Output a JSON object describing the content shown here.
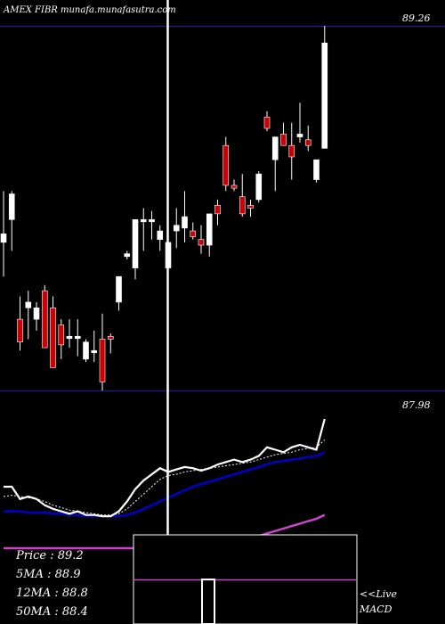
{
  "header": "AMEX  FIBR munafa.munafasutra.com",
  "colors": {
    "background": "#000000",
    "bull": "#ffffff",
    "bear": "#cc0000",
    "level_line": "#1c1c7a",
    "price_line": "#ffffff",
    "ma5": "#ffffff",
    "ma12": "#0000cc",
    "ma50": "#cc44cc",
    "cursor": "#ffffff"
  },
  "chart_data": {
    "type": "candlestick",
    "y_range": [
      87.9,
      89.33
    ],
    "levels": [
      {
        "label": "89.26",
        "value": 89.26
      },
      {
        "label": "87.98",
        "value": 87.98
      }
    ],
    "candles": [
      {
        "o": 88.5,
        "h": 88.68,
        "l": 88.38,
        "c": 88.53
      },
      {
        "o": 88.58,
        "h": 88.68,
        "l": 88.47,
        "c": 88.67
      },
      {
        "o": 88.23,
        "h": 88.31,
        "l": 88.12,
        "c": 88.15
      },
      {
        "o": 88.27,
        "h": 88.33,
        "l": 88.16,
        "c": 88.29
      },
      {
        "o": 88.23,
        "h": 88.29,
        "l": 88.19,
        "c": 88.27
      },
      {
        "o": 88.33,
        "h": 88.35,
        "l": 88.13,
        "c": 88.13
      },
      {
        "o": 88.27,
        "h": 88.31,
        "l": 88.06,
        "c": 88.06
      },
      {
        "o": 88.21,
        "h": 88.23,
        "l": 88.09,
        "c": 88.14
      },
      {
        "o": 88.17,
        "h": 88.23,
        "l": 88.13,
        "c": 88.17
      },
      {
        "o": 88.17,
        "h": 88.23,
        "l": 88.1,
        "c": 88.17
      },
      {
        "o": 88.09,
        "h": 88.16,
        "l": 88.08,
        "c": 88.15
      },
      {
        "o": 88.12,
        "h": 88.19,
        "l": 88.08,
        "c": 88.12
      },
      {
        "o": 88.16,
        "h": 88.25,
        "l": 87.98,
        "c": 88.01
      },
      {
        "o": 88.17,
        "h": 88.18,
        "l": 88.11,
        "c": 88.16
      },
      {
        "o": 88.29,
        "h": 88.38,
        "l": 88.26,
        "c": 88.38
      },
      {
        "o": 88.45,
        "h": 88.47,
        "l": 88.44,
        "c": 88.46
      },
      {
        "o": 88.41,
        "h": 88.58,
        "l": 88.37,
        "c": 88.58
      },
      {
        "o": 88.58,
        "h": 88.62,
        "l": 88.47,
        "c": 88.58
      },
      {
        "o": 88.58,
        "h": 88.61,
        "l": 88.51,
        "c": 88.58
      },
      {
        "o": 88.51,
        "h": 88.56,
        "l": 88.47,
        "c": 88.54
      },
      {
        "o": 88.41,
        "h": 88.53,
        "l": 88.39,
        "c": 88.5
      },
      {
        "o": 88.54,
        "h": 88.62,
        "l": 88.48,
        "c": 88.56
      },
      {
        "o": 88.55,
        "h": 88.68,
        "l": 88.5,
        "c": 88.59
      },
      {
        "o": 88.54,
        "h": 88.57,
        "l": 88.51,
        "c": 88.52
      },
      {
        "o": 88.51,
        "h": 88.56,
        "l": 88.46,
        "c": 88.49
      },
      {
        "o": 88.49,
        "h": 88.6,
        "l": 88.45,
        "c": 88.6
      },
      {
        "o": 88.63,
        "h": 88.65,
        "l": 88.56,
        "c": 88.6
      },
      {
        "o": 88.84,
        "h": 88.87,
        "l": 88.68,
        "c": 88.7
      },
      {
        "o": 88.7,
        "h": 88.72,
        "l": 88.68,
        "c": 88.69
      },
      {
        "o": 88.66,
        "h": 88.74,
        "l": 88.59,
        "c": 88.6
      },
      {
        "o": 88.63,
        "h": 88.65,
        "l": 88.59,
        "c": 88.62
      },
      {
        "o": 88.65,
        "h": 88.75,
        "l": 88.64,
        "c": 88.74
      },
      {
        "o": 88.94,
        "h": 88.96,
        "l": 88.89,
        "c": 88.9
      },
      {
        "o": 88.79,
        "h": 88.87,
        "l": 88.68,
        "c": 88.87
      },
      {
        "o": 88.88,
        "h": 88.92,
        "l": 88.84,
        "c": 88.84
      },
      {
        "o": 88.84,
        "h": 88.92,
        "l": 88.72,
        "c": 88.8
      },
      {
        "o": 88.87,
        "h": 88.99,
        "l": 88.85,
        "c": 88.88
      },
      {
        "o": 88.86,
        "h": 88.91,
        "l": 88.82,
        "c": 88.84
      },
      {
        "o": 88.72,
        "h": 88.79,
        "l": 88.71,
        "c": 88.79
      },
      {
        "o": 88.83,
        "h": 89.26,
        "l": 88.83,
        "c": 89.2
      }
    ],
    "cursor_index": 18,
    "overlay_series": [
      {
        "key": "price",
        "values": [
          88.4,
          88.4,
          88.3,
          88.32,
          88.3,
          88.25,
          88.22,
          88.2,
          88.18,
          88.2,
          88.17,
          88.17,
          88.16,
          88.16,
          88.2,
          88.28,
          88.38,
          88.45,
          88.5,
          88.55,
          88.52,
          88.54,
          88.56,
          88.55,
          88.53,
          88.55,
          88.58,
          88.6,
          88.62,
          88.6,
          88.62,
          88.65,
          88.72,
          88.7,
          88.68,
          88.72,
          88.74,
          88.72,
          88.7,
          88.95
        ]
      },
      {
        "key": "ma5",
        "values": [
          88.32,
          88.33,
          88.32,
          88.31,
          88.3,
          88.28,
          88.25,
          88.23,
          88.21,
          88.2,
          88.19,
          88.18,
          88.17,
          88.17,
          88.18,
          88.22,
          88.28,
          88.34,
          88.4,
          88.46,
          88.49,
          88.5,
          88.52,
          88.53,
          88.54,
          88.55,
          88.56,
          88.57,
          88.58,
          88.59,
          88.6,
          88.62,
          88.64,
          88.66,
          88.67,
          88.68,
          88.7,
          88.71,
          88.72,
          88.78
        ]
      },
      {
        "key": "ma12",
        "values": [
          88.2,
          88.2,
          88.2,
          88.19,
          88.19,
          88.19,
          88.18,
          88.18,
          88.17,
          88.17,
          88.16,
          88.16,
          88.16,
          88.16,
          88.16,
          88.17,
          88.19,
          88.22,
          88.25,
          88.28,
          88.31,
          88.34,
          88.37,
          88.4,
          88.42,
          88.44,
          88.46,
          88.48,
          88.5,
          88.52,
          88.54,
          88.56,
          88.58,
          88.6,
          88.61,
          88.62,
          88.63,
          88.64,
          88.65,
          88.68
        ]
      },
      {
        "key": "ma50",
        "values": [
          87.9,
          87.9,
          87.9,
          87.9,
          87.9,
          87.9,
          87.9,
          87.9,
          87.9,
          87.9,
          87.9,
          87.9,
          87.9,
          87.9,
          87.9,
          87.9,
          87.9,
          87.9,
          87.9,
          87.9,
          87.9,
          87.9,
          87.9,
          87.9,
          87.9,
          87.9,
          87.9,
          87.9,
          87.92,
          87.95,
          87.98,
          88.0,
          88.02,
          88.04,
          88.06,
          88.08,
          88.1,
          88.12,
          88.14,
          88.17
        ]
      }
    ]
  },
  "legend": {
    "price": "Price   : 89.2",
    "ma5": "5MA : 88.9",
    "ma12": "12MA : 88.8",
    "ma50": "50MA : 88.4"
  },
  "macd": {
    "label_line1": "<<Live",
    "label_line2": "MACD",
    "bar_level": 0.5
  }
}
